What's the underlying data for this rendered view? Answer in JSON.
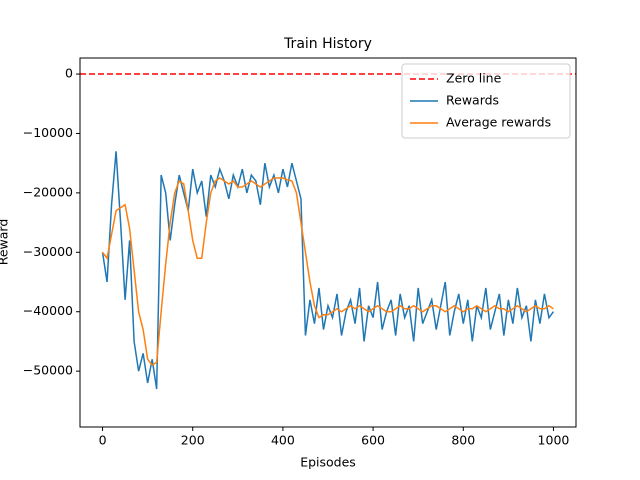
{
  "chart_data": {
    "type": "line",
    "title": "Train History",
    "xlabel": "Episodes",
    "ylabel": "Reward",
    "x": [
      0,
      10,
      20,
      30,
      40,
      50,
      60,
      70,
      80,
      90,
      100,
      110,
      120,
      130,
      140,
      150,
      160,
      170,
      180,
      190,
      200,
      210,
      220,
      230,
      240,
      250,
      260,
      270,
      280,
      290,
      300,
      310,
      320,
      330,
      340,
      350,
      360,
      370,
      380,
      390,
      400,
      410,
      420,
      430,
      440,
      450,
      460,
      470,
      480,
      490,
      500,
      510,
      520,
      530,
      540,
      550,
      560,
      570,
      580,
      590,
      600,
      610,
      620,
      630,
      640,
      650,
      660,
      670,
      680,
      690,
      700,
      710,
      720,
      730,
      740,
      750,
      760,
      770,
      780,
      790,
      800,
      810,
      820,
      830,
      840,
      850,
      860,
      870,
      880,
      890,
      900,
      910,
      920,
      930,
      940,
      950,
      960,
      970,
      980,
      990,
      1000
    ],
    "hlines": [
      {
        "name": "Zero line",
        "value": 0,
        "color": "#ff0000",
        "dashed": true
      }
    ],
    "series": [
      {
        "name": "Rewards",
        "color": "#1f77b4",
        "values": [
          -30000,
          -35000,
          -22000,
          -13000,
          -25000,
          -38000,
          -28000,
          -45000,
          -50000,
          -47000,
          -52000,
          -48000,
          -53000,
          -17000,
          -20000,
          -28000,
          -22000,
          -17000,
          -20000,
          -23000,
          -16000,
          -20000,
          -18000,
          -24000,
          -17000,
          -19000,
          -16000,
          -18000,
          -21000,
          -17000,
          -19000,
          -16000,
          -20000,
          -17000,
          -18000,
          -22000,
          -15000,
          -19000,
          -17000,
          -20000,
          -16000,
          -19000,
          -15000,
          -18000,
          -21000,
          -44000,
          -38000,
          -42000,
          -36000,
          -43000,
          -39000,
          -41000,
          -37000,
          -44000,
          -40000,
          -38000,
          -42000,
          -36000,
          -45000,
          -39000,
          -41000,
          -35000,
          -43000,
          -40000,
          -38000,
          -44000,
          -37000,
          -41000,
          -39000,
          -45000,
          -36000,
          -42000,
          -40000,
          -38000,
          -43000,
          -39000,
          -35000,
          -44000,
          -40000,
          -37000,
          -42000,
          -38000,
          -45000,
          -39000,
          -41000,
          -36000,
          -43000,
          -40000,
          -37000,
          -44000,
          -38000,
          -42000,
          -36000,
          -41000,
          -39000,
          -45000,
          -38000,
          -42000,
          -37000,
          -41000,
          -40000
        ]
      },
      {
        "name": "Average rewards",
        "color": "#ff7f0e",
        "values": [
          -30000,
          -31000,
          -27000,
          -23000,
          -22500,
          -22000,
          -26000,
          -33000,
          -40000,
          -43000,
          -48000,
          -49000,
          -48500,
          -40000,
          -32000,
          -25000,
          -20000,
          -18000,
          -18500,
          -23000,
          -28000,
          -31000,
          -31000,
          -25000,
          -20000,
          -18000,
          -17500,
          -18000,
          -18500,
          -18000,
          -19000,
          -19000,
          -18500,
          -18000,
          -18500,
          -19000,
          -18500,
          -18000,
          -17500,
          -17500,
          -17500,
          -17800,
          -18000,
          -20000,
          -25000,
          -30000,
          -35000,
          -39000,
          -41000,
          -40500,
          -40500,
          -40000,
          -39500,
          -40000,
          -39500,
          -39000,
          -39500,
          -39000,
          -39500,
          -40000,
          -39500,
          -39000,
          -39500,
          -40000,
          -40000,
          -39500,
          -39000,
          -39500,
          -39500,
          -39000,
          -39500,
          -40000,
          -39500,
          -39000,
          -39000,
          -39500,
          -40000,
          -39500,
          -39000,
          -39500,
          -40000,
          -39500,
          -39500,
          -39000,
          -39500,
          -40000,
          -39500,
          -39000,
          -39500,
          -39500,
          -40000,
          -39500,
          -39000,
          -39500,
          -40000,
          -39500,
          -39000,
          -39500,
          -39500,
          -39000,
          -39500
        ]
      }
    ],
    "xlim": [
      -50,
      1050
    ],
    "ylim": [
      -59400,
      2700
    ],
    "xticks": [
      0,
      200,
      400,
      600,
      800,
      1000
    ],
    "yticks": [
      0,
      {
        "value": -10000,
        "label": "−10000"
      },
      {
        "value": -20000,
        "label": "−20000"
      },
      {
        "value": -30000,
        "label": "−30000"
      },
      {
        "value": -40000,
        "label": "−40000"
      },
      {
        "value": -50000,
        "label": "−50000"
      }
    ],
    "legend": "upper right"
  }
}
